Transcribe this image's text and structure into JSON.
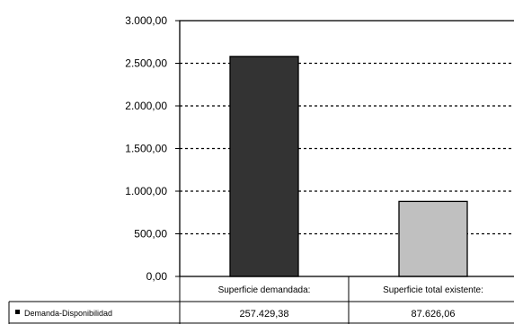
{
  "chart_data": {
    "type": "bar",
    "categories": [
      "Superficie demandada:",
      "Superficie total existente:"
    ],
    "series": [
      {
        "name": "Demanda-Disponibilidad",
        "values": [
          2580,
          880
        ],
        "table_labels": [
          "257.429,38",
          "87.626,06"
        ],
        "colors": [
          "#333333",
          "#c0c0c0"
        ]
      }
    ],
    "y_ticks": [
      "0,00",
      "500,00",
      "1.000,00",
      "1.500,00",
      "2.000,00",
      "2.500,00",
      "3.000,00"
    ],
    "ylim": [
      0,
      3000
    ],
    "grid": true,
    "legend": "data-table-left"
  }
}
